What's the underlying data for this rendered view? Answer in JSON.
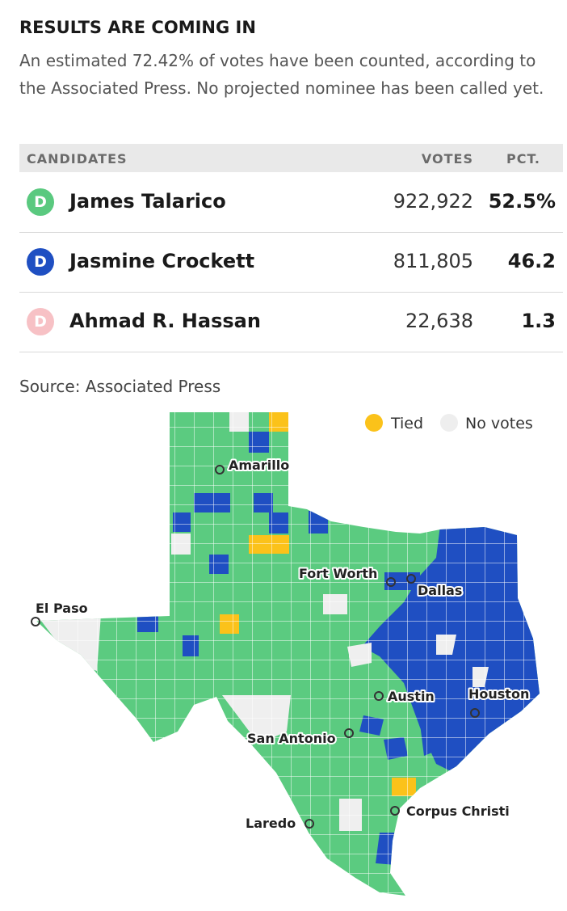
{
  "header": {
    "title": "RESULTS ARE COMING IN",
    "description": "An estimated 72.42% of votes have been counted, according to the Associated Press. No projected nominee has been called yet."
  },
  "table": {
    "headers": [
      "CANDIDATES",
      "VOTES",
      "PCT."
    ],
    "rows": [
      {
        "badge": "D",
        "name": "James Talarico",
        "votes": "922,922",
        "pct": "52.5%",
        "color": "#5ac97f"
      },
      {
        "badge": "D",
        "name": "Jasmine Crockett",
        "votes": "811,805",
        "pct": "46.2",
        "color": "#1f4fc2"
      },
      {
        "badge": "D",
        "name": "Ahmad R. Hassan",
        "votes": "22,638",
        "pct": "1.3",
        "color": "#f7c1c5"
      }
    ]
  },
  "source": "Source: Associated Press",
  "map": {
    "legend": [
      {
        "label": "Tied",
        "color": "#fbc21a"
      },
      {
        "label": "No votes",
        "color": "#eeeeee"
      }
    ],
    "cities": [
      "Amarillo",
      "Fort Worth",
      "Dallas",
      "El Paso",
      "Austin",
      "Houston",
      "San Antonio",
      "Laredo",
      "Corpus Christi"
    ]
  }
}
